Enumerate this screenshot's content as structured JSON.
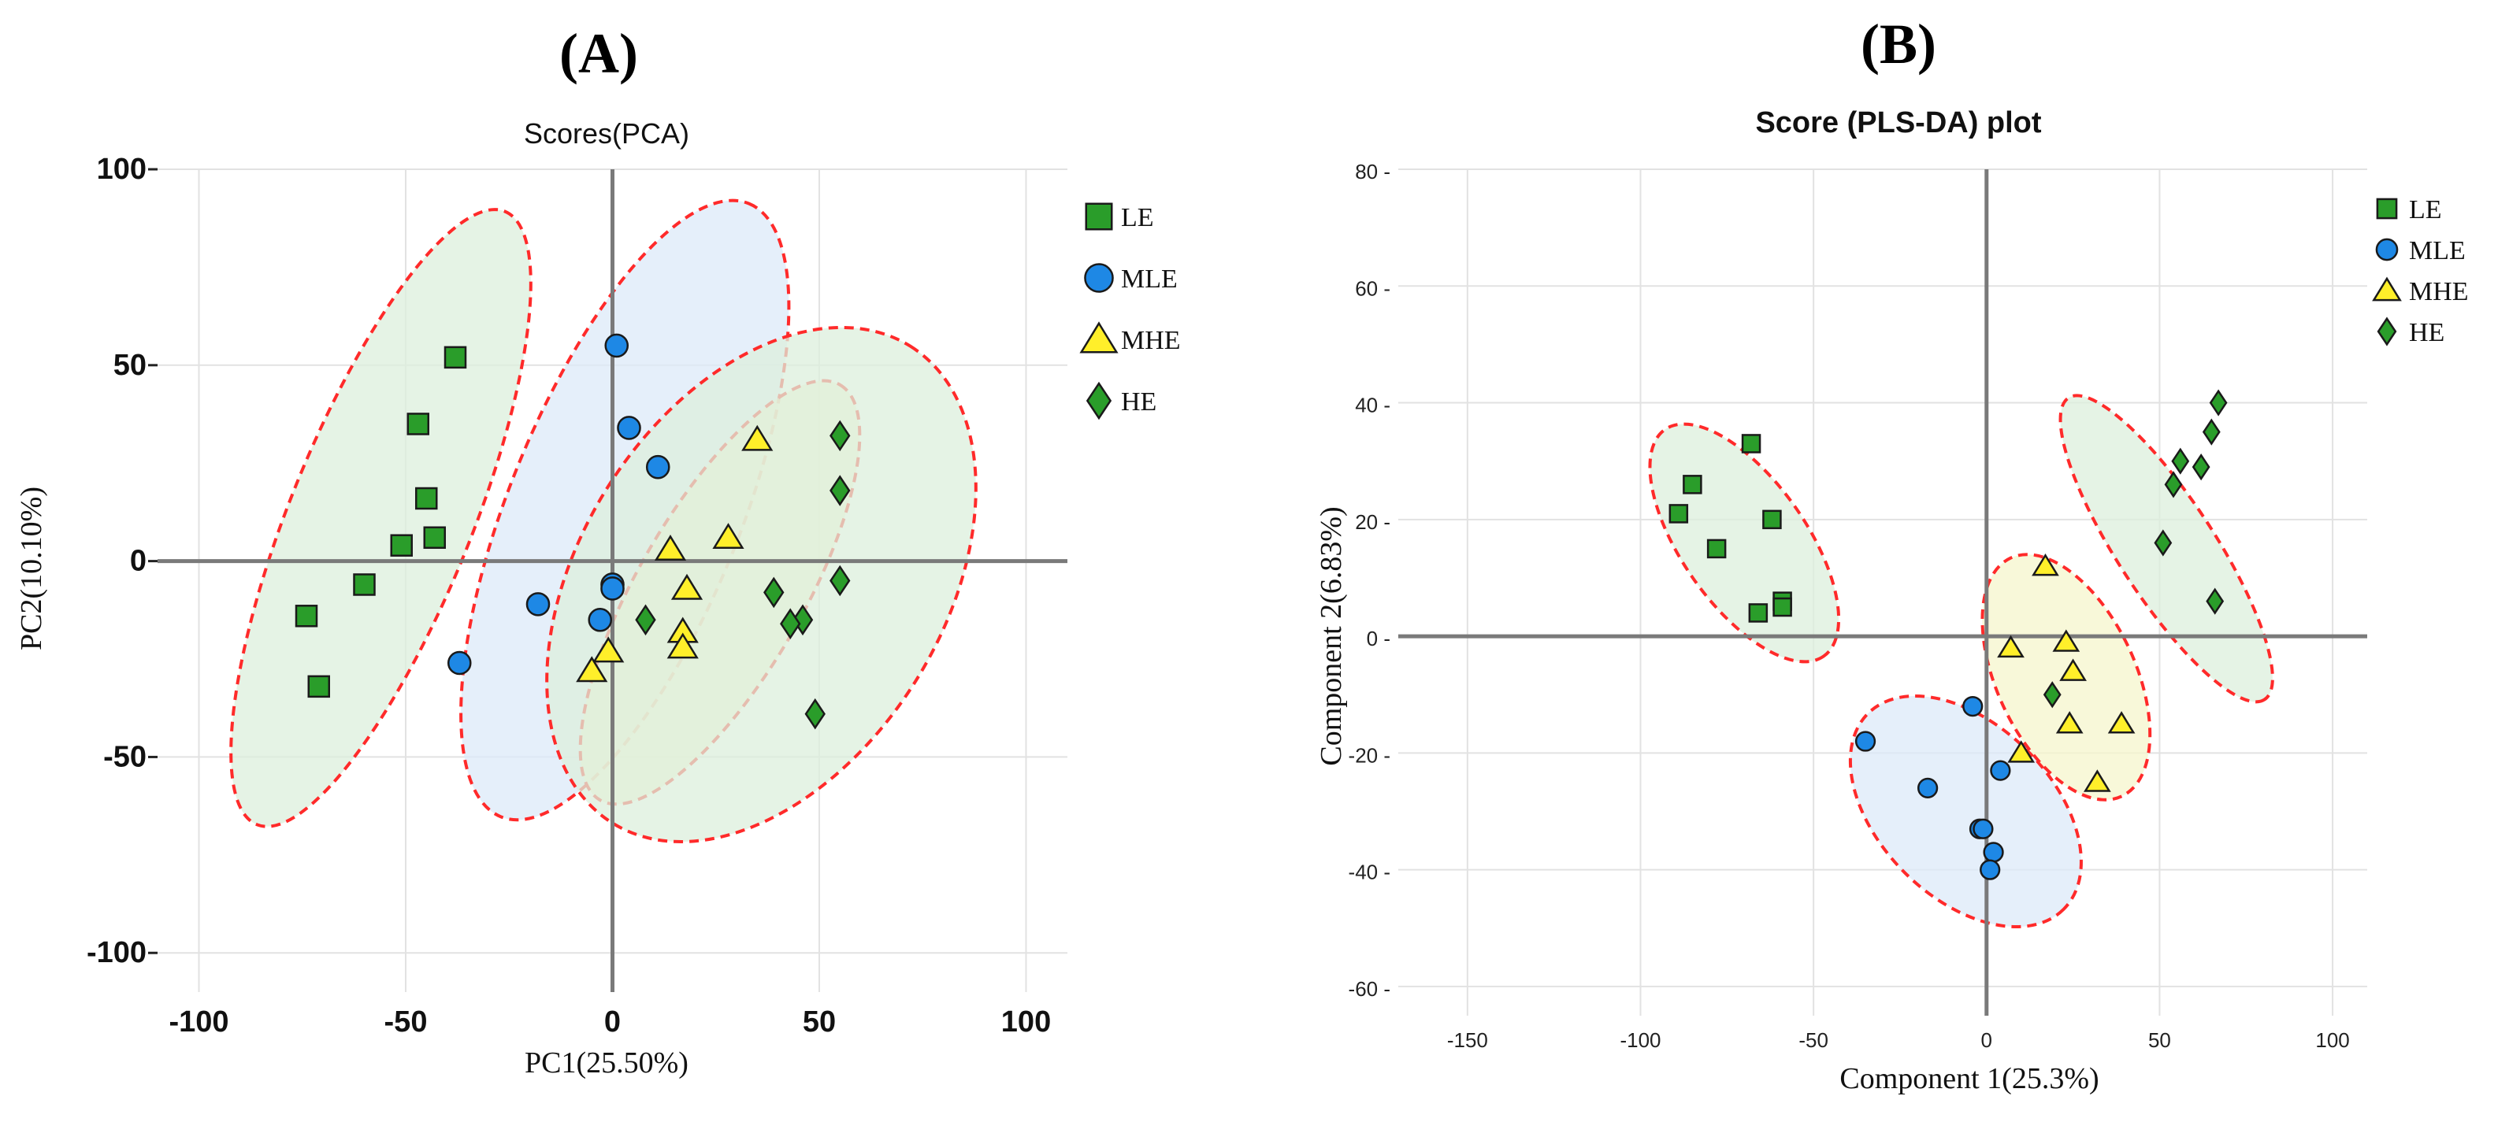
{
  "chart_data": [
    {
      "panel_label": "(A)",
      "type": "scatter",
      "title": "Scores(PCA)",
      "xlabel": "PC1(25.50%)",
      "ylabel": "PC2(10.10%)",
      "xlim": [
        -110,
        110
      ],
      "ylim": [
        -110,
        100
      ],
      "xticks": [
        -100,
        -50,
        0,
        50,
        100
      ],
      "yticks": [
        -100,
        -50,
        0,
        50,
        100
      ],
      "xticks_label": [
        "-100",
        "-50",
        "0",
        "50",
        "100"
      ],
      "yticks_label": [
        "-100",
        "-50",
        "0",
        "50",
        "100"
      ],
      "grid": true,
      "legend_position": "top-right",
      "series": [
        {
          "name": "LE",
          "marker": "square",
          "color": "#2a9d2a",
          "points": [
            [
              -38,
              52
            ],
            [
              -47,
              35
            ],
            [
              -45,
              16
            ],
            [
              -43,
              6
            ],
            [
              -51,
              4
            ],
            [
              -60,
              -6
            ],
            [
              -74,
              -14
            ],
            [
              -71,
              -32
            ]
          ],
          "ellipse": {
            "cx": -56,
            "cy": 11,
            "rx": 80,
            "ry": 22,
            "angle": 68,
            "fill": "#dcefdc"
          }
        },
        {
          "name": "MLE",
          "marker": "circle",
          "color": "#1e88e5",
          "points": [
            [
              1,
              55
            ],
            [
              4,
              34
            ],
            [
              11,
              24
            ],
            [
              0,
              -6
            ],
            [
              0,
              -7
            ],
            [
              -18,
              -11
            ],
            [
              -3,
              -15
            ],
            [
              -37,
              -26
            ]
          ],
          "ellipse": {
            "cx": 3,
            "cy": 13,
            "rx": 80,
            "ry": 28,
            "angle": 68,
            "fill": "#dce9f8"
          }
        },
        {
          "name": "MHE",
          "marker": "triangle",
          "color": "#ffef2a",
          "points": [
            [
              35,
              31
            ],
            [
              28,
              6
            ],
            [
              14,
              3
            ],
            [
              18,
              -7
            ],
            [
              17,
              -18
            ],
            [
              17,
              -22
            ],
            [
              -1,
              -23
            ],
            [
              -5,
              -28
            ]
          ],
          "ellipse": {
            "cx": 26,
            "cy": -8,
            "rx": 58,
            "ry": 20,
            "angle": 60,
            "fill": "#f6f6cc"
          }
        },
        {
          "name": "HE",
          "marker": "diamond",
          "color": "#2a9d2a",
          "points": [
            [
              55,
              32
            ],
            [
              55,
              18
            ],
            [
              55,
              -5
            ],
            [
              39,
              -8
            ],
            [
              46,
              -15
            ],
            [
              43,
              -16
            ],
            [
              8,
              -15
            ],
            [
              49,
              -39
            ]
          ],
          "ellipse": {
            "cx": 36,
            "cy": -6,
            "rx": 68,
            "ry": 44,
            "angle": 58,
            "fill": "#dcefdc"
          }
        }
      ]
    },
    {
      "panel_label": "(B)",
      "type": "scatter",
      "title": "Score (PLS-DA) plot",
      "xlabel": "Component 1(25.3%)",
      "ylabel": "Component 2(6.83%)",
      "xlim": [
        -170,
        110
      ],
      "ylim": [
        -65,
        80
      ],
      "xticks": [
        -150,
        -100,
        -50,
        0,
        50,
        100
      ],
      "yticks": [
        -60,
        -40,
        -20,
        0,
        20,
        40,
        60,
        80
      ],
      "xticks_label": [
        "-150",
        "-100",
        "-50",
        "0",
        "50",
        "100"
      ],
      "yticks_label": [
        "-60 -",
        "-40 -",
        "-20 -",
        "0 -",
        "20 -",
        "40 -",
        "60 -",
        "80 -"
      ],
      "grid": true,
      "legend_position": "top-right",
      "series": [
        {
          "name": "LE",
          "marker": "square",
          "color": "#2a9d2a",
          "points": [
            [
              -68,
              33
            ],
            [
              -85,
              26
            ],
            [
              -89,
              21
            ],
            [
              -62,
              20
            ],
            [
              -78,
              15
            ],
            [
              -59,
              6
            ],
            [
              -59,
              5
            ],
            [
              -66,
              4
            ]
          ],
          "ellipse": {
            "cx": -70,
            "cy": 16,
            "rx": 40,
            "ry": 18,
            "angle": -55,
            "fill": "#dcefdc"
          }
        },
        {
          "name": "MLE",
          "marker": "circle",
          "color": "#1e88e5",
          "points": [
            [
              -4,
              -12
            ],
            [
              -35,
              -18
            ],
            [
              4,
              -23
            ],
            [
              -17,
              -26
            ],
            [
              -2,
              -33
            ],
            [
              -1,
              -33
            ],
            [
              2,
              -37
            ],
            [
              1,
              -40
            ]
          ],
          "ellipse": {
            "cx": -6,
            "cy": -30,
            "rx": 40,
            "ry": 25,
            "angle": -45,
            "fill": "#dce9f8"
          }
        },
        {
          "name": "MHE",
          "marker": "triangle",
          "color": "#ffef2a",
          "points": [
            [
              17,
              12
            ],
            [
              7,
              -2
            ],
            [
              23,
              -1
            ],
            [
              25,
              -6
            ],
            [
              24,
              -15
            ],
            [
              39,
              -15
            ],
            [
              10,
              -20
            ],
            [
              32,
              -25
            ]
          ],
          "ellipse": {
            "cx": 23,
            "cy": -7,
            "rx": 38,
            "ry": 20,
            "angle": -65,
            "fill": "#f6f6cc"
          }
        },
        {
          "name": "HE",
          "marker": "diamond",
          "color": "#2a9d2a",
          "points": [
            [
              67,
              40
            ],
            [
              65,
              35
            ],
            [
              56,
              30
            ],
            [
              62,
              29
            ],
            [
              54,
              26
            ],
            [
              51,
              16
            ],
            [
              66,
              6
            ],
            [
              19,
              -10
            ]
          ],
          "ellipse": {
            "cx": 52,
            "cy": 15,
            "rx": 52,
            "ry": 14,
            "angle": -57,
            "fill": "#dcefdc"
          }
        }
      ]
    }
  ]
}
